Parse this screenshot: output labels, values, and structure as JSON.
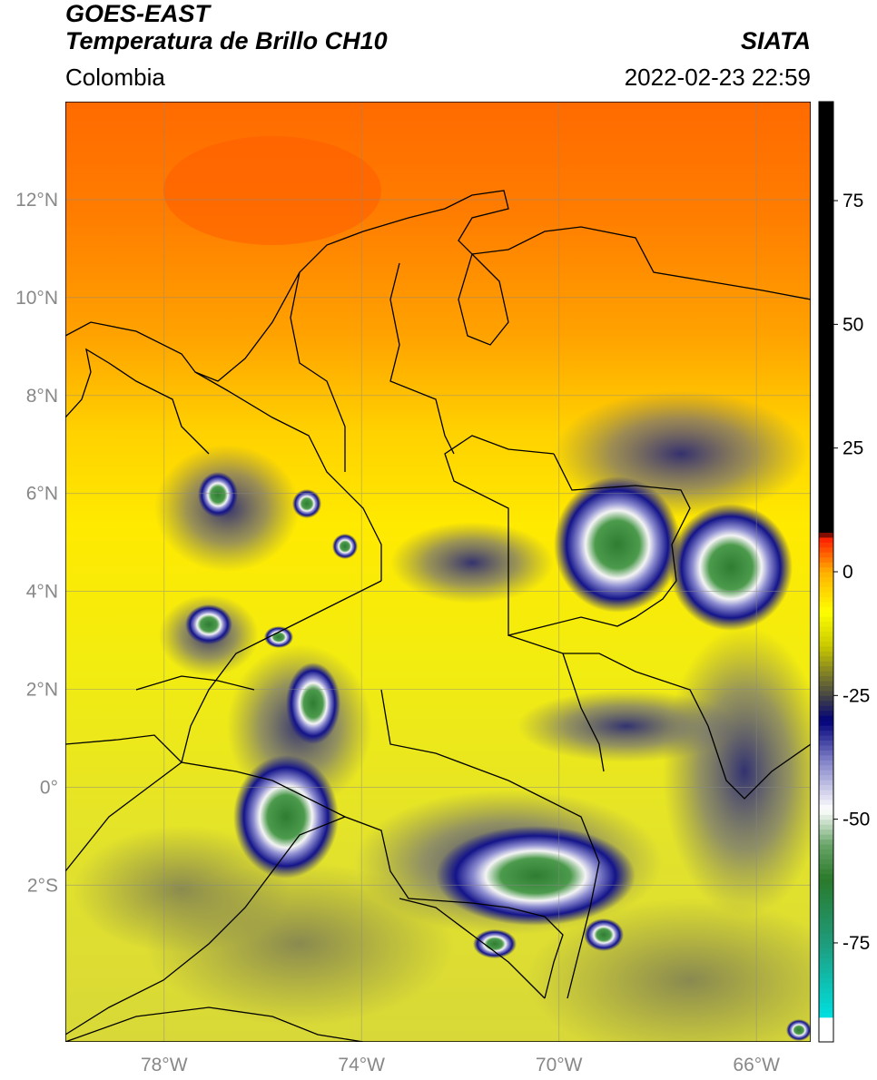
{
  "title": {
    "line1": "GOES-EAST",
    "line2": "Temperatura de Brillo CH10",
    "region": "Colombia",
    "org": "SIATA",
    "datetime": "2022-02-23 22:59"
  },
  "map": {
    "lon_range": [
      -80,
      -64.9
    ],
    "lat_range": [
      -5.2,
      14
    ],
    "lat_ticks": [
      {
        "value": 12,
        "label": "12°N"
      },
      {
        "value": 10,
        "label": "10°N"
      },
      {
        "value": 8,
        "label": "8°N"
      },
      {
        "value": 6,
        "label": "6°N"
      },
      {
        "value": 4,
        "label": "4°N"
      },
      {
        "value": 2,
        "label": "2°N"
      },
      {
        "value": 0,
        "label": "0°"
      },
      {
        "value": -2,
        "label": "2°S"
      }
    ],
    "lon_ticks": [
      {
        "value": -78,
        "label": "78°W"
      },
      {
        "value": -74,
        "label": "74°W"
      },
      {
        "value": -70,
        "label": "70°W"
      },
      {
        "value": -66,
        "label": "66°W"
      }
    ],
    "gridlines": true
  },
  "colorbar": {
    "range": [
      -95,
      95
    ],
    "ticks": [
      {
        "value": 75,
        "label": "75"
      },
      {
        "value": 50,
        "label": "50"
      },
      {
        "value": 25,
        "label": "25"
      },
      {
        "value": 0,
        "label": "0"
      },
      {
        "value": -25,
        "label": "-25"
      },
      {
        "value": -50,
        "label": "-50"
      },
      {
        "value": -75,
        "label": "-75"
      }
    ],
    "stops": [
      {
        "value": -95,
        "color": "#ffffff"
      },
      {
        "value": -90,
        "color": "#ffffff"
      },
      {
        "value": -89.9,
        "color": "#00e0e0"
      },
      {
        "value": -75,
        "color": "#1e9c7c"
      },
      {
        "value": -62,
        "color": "#2a7a2a"
      },
      {
        "value": -55,
        "color": "#6aa66a"
      },
      {
        "value": -48,
        "color": "#ffffff"
      },
      {
        "value": -38,
        "color": "#8080c8"
      },
      {
        "value": -30,
        "color": "#00007a"
      },
      {
        "value": -25,
        "color": "#454545"
      },
      {
        "value": -15,
        "color": "#c8c800"
      },
      {
        "value": -8,
        "color": "#ffff00"
      },
      {
        "value": 0,
        "color": "#ffb000"
      },
      {
        "value": 7,
        "color": "#ff1a00"
      },
      {
        "value": 8,
        "color": "#000000"
      },
      {
        "value": 95,
        "color": "#000000"
      }
    ]
  },
  "colors": {
    "warm_north": "#ff7a00",
    "mid": "#ffcc00",
    "south": "#e5e52a",
    "cloud_ring": "#1a1a8c",
    "cloud_core": "#3a8a3a",
    "border": "#000000"
  }
}
